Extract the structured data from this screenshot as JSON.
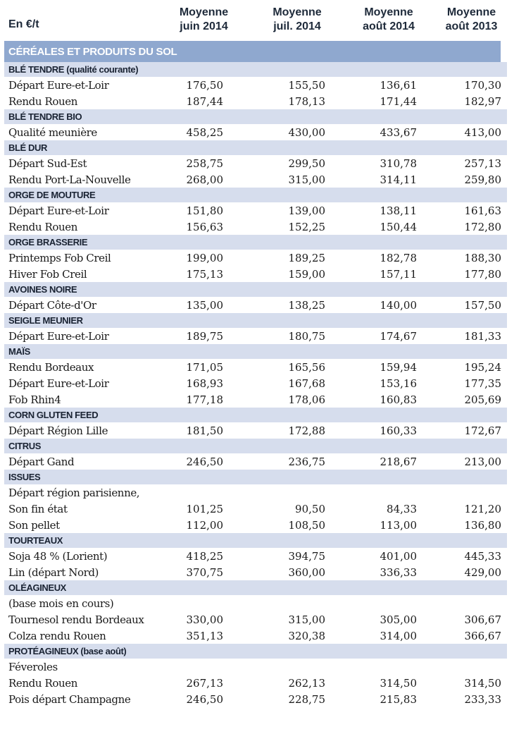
{
  "header": {
    "unit": "En €/t",
    "columns": [
      {
        "line1": "Moyenne",
        "line2": "juin 2014"
      },
      {
        "line1": "Moyenne",
        "line2": "juil. 2014"
      },
      {
        "line1": "Moyenne",
        "line2": "août 2014"
      },
      {
        "line1": "Moyenne",
        "line2": "août 2013"
      }
    ]
  },
  "section_title": "CÉRÉALES ET PRODUITS DU SOL",
  "groups": [
    {
      "title": "BLÉ TENDRE (qualité courante)",
      "rows": [
        {
          "name": "Départ Eure-et-Loir",
          "values": [
            "176,50",
            "155,50",
            "136,61",
            "170,30"
          ]
        },
        {
          "name": "Rendu Rouen",
          "values": [
            "187,44",
            "178,13",
            "171,44",
            "182,97"
          ]
        }
      ]
    },
    {
      "title": "BLÉ TENDRE BIO",
      "rows": [
        {
          "name": "Qualité meunière",
          "values": [
            "458,25",
            "430,00",
            "433,67",
            "413,00"
          ]
        }
      ]
    },
    {
      "title": "BLÉ DUR",
      "rows": [
        {
          "name": "Départ Sud-Est",
          "values": [
            "258,75",
            "299,50",
            "310,78",
            "257,13"
          ]
        },
        {
          "name": "Rendu Port-La-Nouvelle",
          "values": [
            "268,00",
            "315,00",
            "314,11",
            "259,80"
          ]
        }
      ]
    },
    {
      "title": "ORGE DE MOUTURE",
      "rows": [
        {
          "name": "Départ Eure-et-Loir",
          "values": [
            "151,80",
            "139,00",
            "138,11",
            "161,63"
          ]
        },
        {
          "name": "Rendu Rouen",
          "values": [
            "156,63",
            "152,25",
            "150,44",
            "172,80"
          ]
        }
      ]
    },
    {
      "title": "ORGE BRASSERIE",
      "rows": [
        {
          "name": "Printemps Fob Creil",
          "values": [
            "199,00",
            "189,25",
            "182,78",
            "188,30"
          ]
        },
        {
          "name": "Hiver Fob Creil",
          "values": [
            "175,13",
            "159,00",
            "157,11",
            "177,80"
          ]
        }
      ]
    },
    {
      "title": "AVOINES NOIRE",
      "rows": [
        {
          "name": "Départ Côte-d'Or",
          "values": [
            "135,00",
            "138,25",
            "140,00",
            "157,50"
          ]
        }
      ]
    },
    {
      "title": "SEIGLE MEUNIER",
      "rows": [
        {
          "name": "Départ Eure-et-Loir",
          "values": [
            "189,75",
            "180,75",
            "174,67",
            "181,33"
          ]
        }
      ]
    },
    {
      "title": "MAÏS",
      "rows": [
        {
          "name": "Rendu Bordeaux",
          "values": [
            "171,05",
            "165,56",
            "159,94",
            "195,24"
          ]
        },
        {
          "name": "Départ Eure-et-Loir",
          "values": [
            "168,93",
            "167,68",
            "153,16",
            "177,35"
          ]
        },
        {
          "name": "Fob Rhin4",
          "values": [
            "177,18",
            "178,06",
            "160,83",
            "205,69"
          ]
        }
      ]
    },
    {
      "title": "CORN GLUTEN FEED",
      "rows": [
        {
          "name": "Départ Région Lille",
          "values": [
            "181,50",
            "172,88",
            "160,33",
            "172,67"
          ]
        }
      ]
    },
    {
      "title": "CITRUS",
      "rows": [
        {
          "name": "Départ Gand",
          "values": [
            "246,50",
            "236,75",
            "218,67",
            "213,00"
          ]
        }
      ]
    },
    {
      "title": "ISSUES",
      "rows": [
        {
          "name": "Départ région parisienne,",
          "values": [
            "",
            "",
            "",
            ""
          ]
        },
        {
          "name": "Son fin état",
          "values": [
            "101,25",
            "90,50",
            "84,33",
            "121,20"
          ]
        },
        {
          "name": "Son pellet",
          "values": [
            "112,00",
            "108,50",
            "113,00",
            "136,80"
          ]
        }
      ]
    },
    {
      "title": "TOURTEAUX",
      "rows": [
        {
          "name": "Soja 48 % (Lorient)",
          "values": [
            "418,25",
            "394,75",
            "401,00",
            "445,33"
          ]
        },
        {
          "name": "Lin (départ Nord)",
          "values": [
            "370,75",
            "360,00",
            "336,33",
            "429,00"
          ]
        }
      ]
    },
    {
      "title": "OLÉAGINEUX",
      "rows": [
        {
          "name": "(base mois en cours)",
          "values": [
            "",
            "",
            "",
            ""
          ]
        },
        {
          "name": "Tournesol rendu Bordeaux",
          "values": [
            "330,00",
            "315,00",
            "305,00",
            "306,67"
          ]
        },
        {
          "name": "Colza rendu Rouen",
          "values": [
            "351,13",
            "320,38",
            "314,00",
            "366,67"
          ]
        }
      ]
    },
    {
      "title": "PROTÉAGINEUX (base août)",
      "rows": [
        {
          "name": "Féveroles",
          "values": [
            "",
            "",
            "",
            ""
          ]
        },
        {
          "name": "Rendu Rouen",
          "values": [
            "267,13",
            "262,13",
            "314,50",
            "314,50"
          ]
        },
        {
          "name": "Pois départ Champagne",
          "values": [
            "246,50",
            "228,75",
            "215,83",
            "233,33"
          ]
        }
      ]
    }
  ]
}
